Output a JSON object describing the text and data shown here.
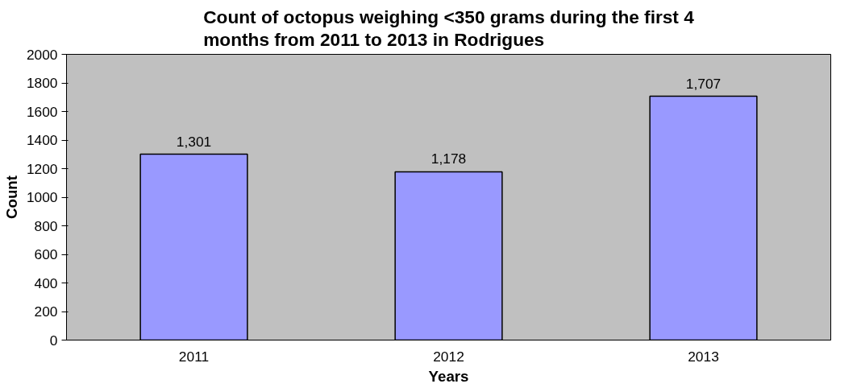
{
  "chart_data": {
    "type": "bar",
    "title": "Count of octopus weighing <350 grams during the first 4 months from 2011 to 2013 in Rodrigues",
    "xlabel": "Years",
    "ylabel": "Count",
    "categories": [
      "2011",
      "2012",
      "2013"
    ],
    "values": [
      1301,
      1178,
      1707
    ],
    "value_labels": [
      "1,301",
      "1,178",
      "1,707"
    ],
    "color": "#9999ff",
    "ylim": [
      0,
      2000
    ],
    "yticks": [
      0,
      200,
      400,
      600,
      800,
      1000,
      1200,
      1400,
      1600,
      1800,
      2000
    ],
    "grid": false
  }
}
